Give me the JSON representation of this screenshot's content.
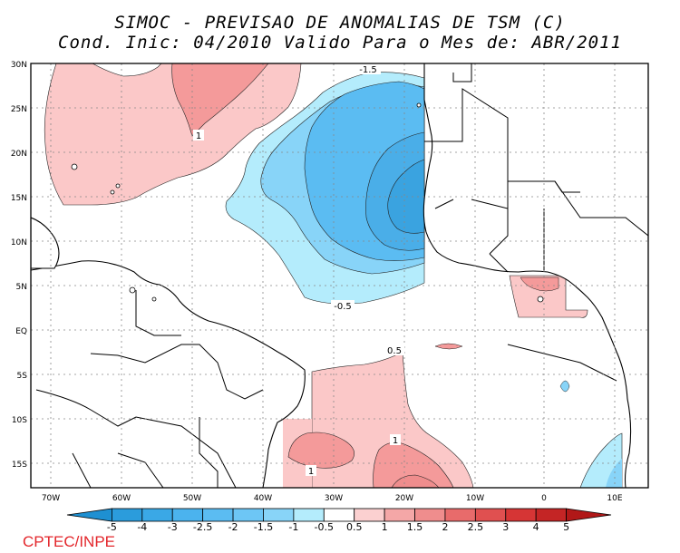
{
  "title": {
    "line1": "SIMOC - PREVISAO DE ANOMALIAS DE TSM (C)",
    "line2": "Cond. Inic: 04/2010   Valido Para o Mes de: ABR/2011"
  },
  "latitude_labels": [
    "30N",
    "25N",
    "20N",
    "15N",
    "10N",
    "5N",
    "EQ",
    "5S",
    "10S",
    "15S"
  ],
  "longitude_labels": [
    "70W",
    "60W",
    "50W",
    "40W",
    "30W",
    "20W",
    "10W",
    "0",
    "10E"
  ],
  "contour_labels": [
    "-1.5",
    "-0.5",
    "0.5",
    "1",
    "1",
    "1"
  ],
  "colorbar": {
    "labels": [
      "-5",
      "-4",
      "-3",
      "-2.5",
      "-2",
      "-1.5",
      "-1",
      "-0.5",
      "0.5",
      "1",
      "1.5",
      "2",
      "2.5",
      "3",
      "4",
      "5"
    ],
    "colors": [
      "#1e90d2",
      "#2b9cdc",
      "#3aa8e6",
      "#4bb3ee",
      "#5bbcf2",
      "#6dc6f5",
      "#88d4f8",
      "#b4ecfc",
      "#ffffff",
      "#fbd0d0",
      "#f4a7a7",
      "#ef8d8d",
      "#e86b6b",
      "#e05050",
      "#d63535",
      "#c42525",
      "#b11818"
    ]
  },
  "brand": "CPTEC/INPE",
  "colors": {
    "border": "#000000",
    "grid": "#888888",
    "positive_light": "#fbc8c8",
    "positive_mid": "#f49a9a",
    "negative_light": "#b4ecfc",
    "negative_mid": "#88d4f8",
    "negative_strong": "#5bbcf2",
    "negative_deep": "#3aa3e0"
  }
}
